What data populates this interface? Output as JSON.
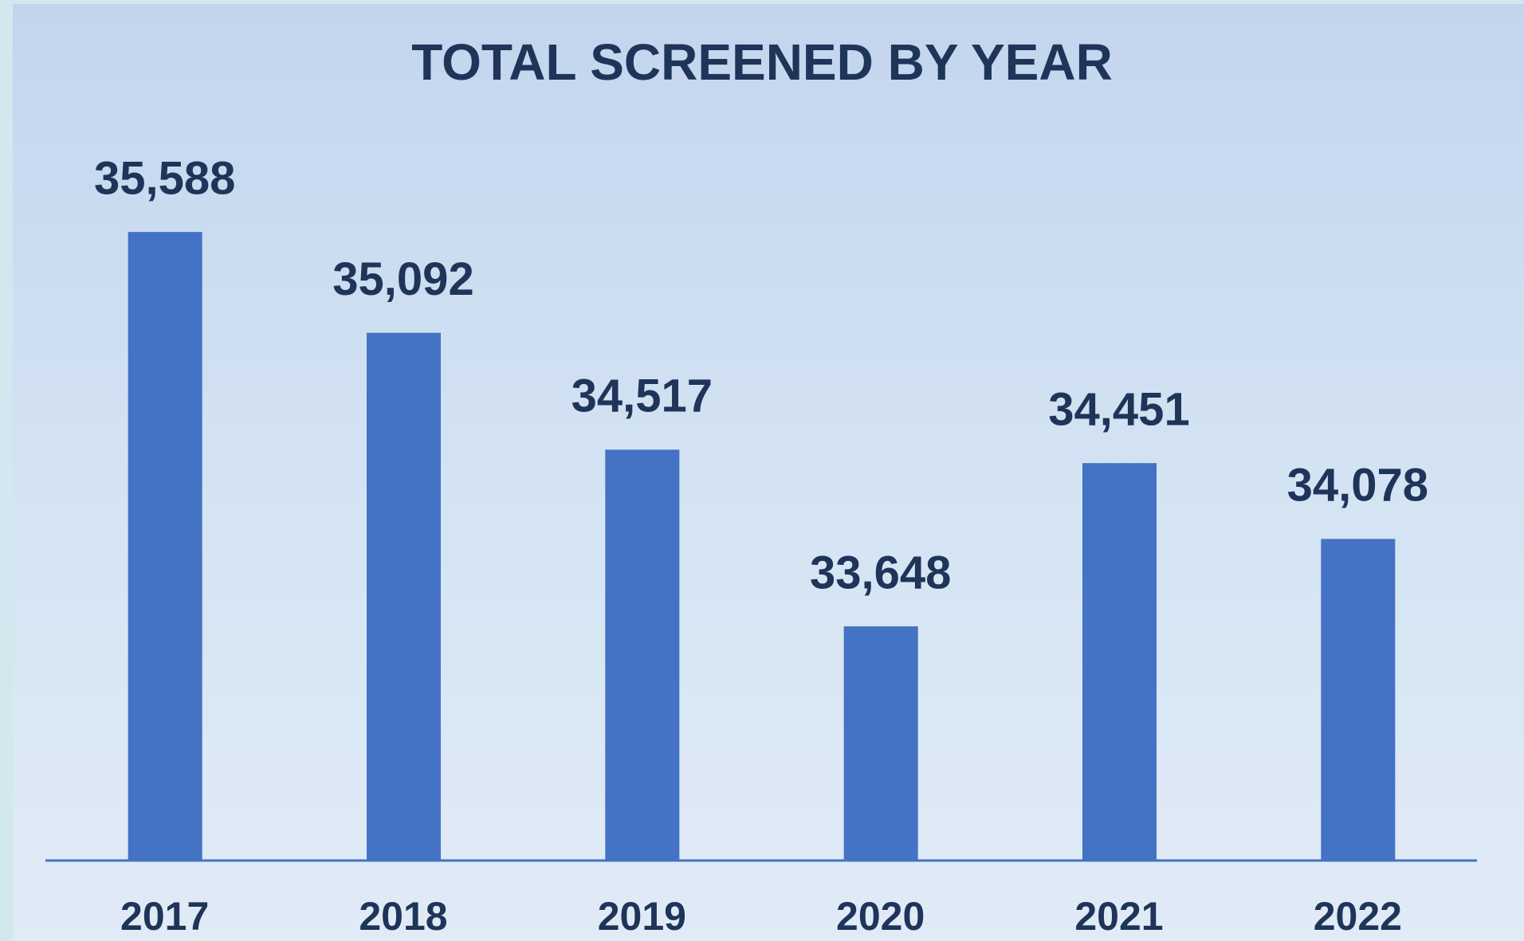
{
  "chart_data": {
    "type": "bar",
    "title": "TOTAL SCREENED BY YEAR",
    "categories": [
      "2017",
      "2018",
      "2019",
      "2020",
      "2021",
      "2022"
    ],
    "values": [
      35588,
      35092,
      34517,
      33648,
      34451,
      34078
    ],
    "value_labels": [
      "35,588",
      "35,092",
      "34,517",
      "33,648",
      "34,451",
      "34,078"
    ],
    "color": "#4472c4",
    "ylim": [
      32500,
      36000
    ]
  }
}
